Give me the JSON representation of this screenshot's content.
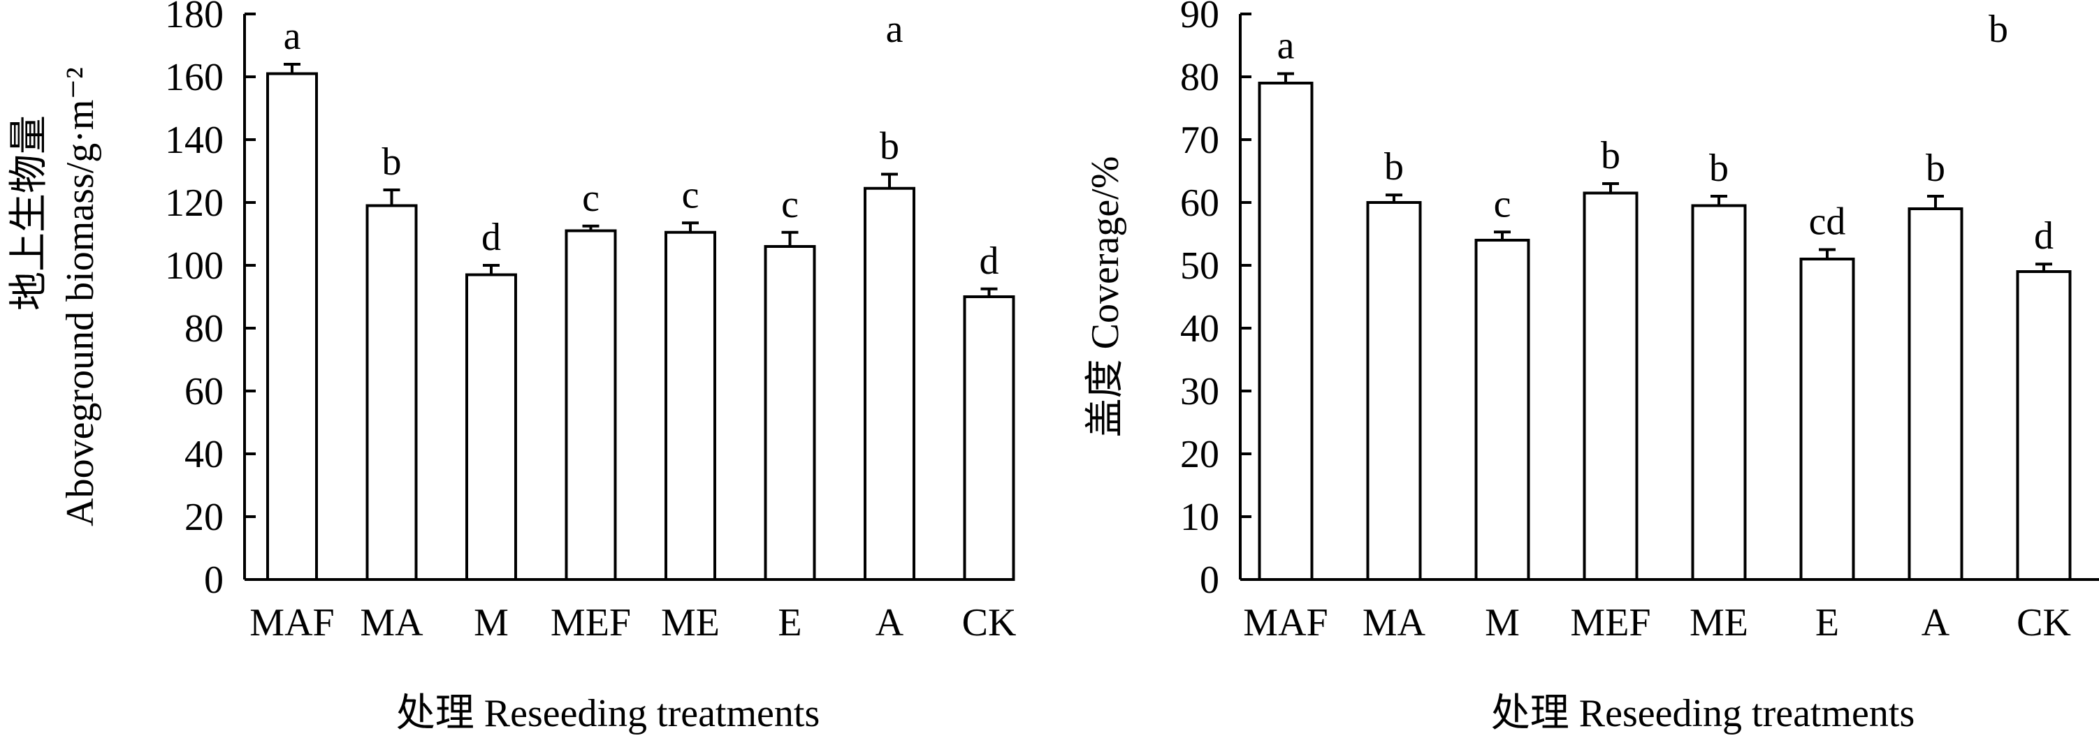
{
  "chart_data": [
    {
      "type": "bar",
      "panel_letter": "a",
      "categories": [
        "MAF",
        "MA",
        "M",
        "MEF",
        "ME",
        "E",
        "A",
        "CK"
      ],
      "values": [
        161,
        119,
        97,
        111,
        110.5,
        106,
        124.5,
        90
      ],
      "errors": [
        3,
        5,
        3,
        1.5,
        3,
        4.5,
        4.5,
        2.5
      ],
      "significance": [
        "a",
        "b",
        "d",
        "c",
        "c",
        "c",
        "b",
        "d"
      ],
      "ylabel_cn": "地上生物量",
      "ylabel_en": "Aboveground biomass/g·m⁻²",
      "xlabel": "处理 Reseeding treatments",
      "ylim": [
        0,
        180
      ],
      "yticks": [
        "0",
        "20",
        "40",
        "60",
        "80",
        "100",
        "120",
        "140",
        "160",
        "180"
      ],
      "grid": false
    },
    {
      "type": "bar",
      "panel_letter": "b",
      "categories": [
        "MAF",
        "MA",
        "M",
        "MEF",
        "ME",
        "E",
        "A",
        "CK"
      ],
      "values": [
        79,
        60,
        54,
        61.5,
        59.5,
        51,
        59,
        49
      ],
      "errors": [
        1.5,
        1.2,
        1.3,
        1.5,
        1.5,
        1.5,
        2,
        1.2
      ],
      "significance": [
        "a",
        "b",
        "c",
        "b",
        "b",
        "cd",
        "b",
        "d"
      ],
      "ylabel": "盖度 Coverage/%",
      "xlabel": "处理 Reseeding treatments",
      "ylim": [
        0,
        90
      ],
      "yticks": [
        "0",
        "10",
        "20",
        "30",
        "40",
        "50",
        "60",
        "70",
        "80",
        "90"
      ],
      "grid": false
    }
  ]
}
